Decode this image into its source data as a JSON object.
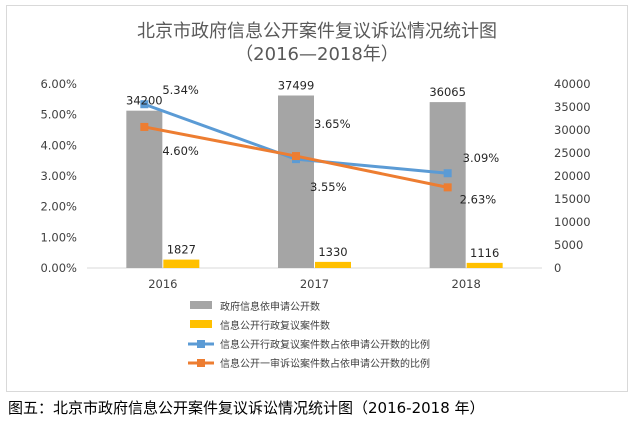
{
  "caption": "图五：北京市政府信息公开案件复议诉讼情况统计图（2016-2018 年）",
  "chart_data": {
    "type": "bar",
    "title": "北京市政府信息公开案件复议诉讼情况统计图",
    "subtitle": "（2016—2018年）",
    "categories": [
      "2016",
      "2017",
      "2018"
    ],
    "left_axis": {
      "min": 0,
      "max": 0.06,
      "ticks": [
        "0.00%",
        "1.00%",
        "2.00%",
        "3.00%",
        "4.00%",
        "5.00%",
        "6.00%"
      ]
    },
    "right_axis": {
      "min": 0,
      "max": 40000,
      "ticks": [
        "0",
        "5000",
        "10000",
        "15000",
        "20000",
        "25000",
        "30000",
        "35000",
        "40000"
      ]
    },
    "grid": false,
    "legend_position": "bottom",
    "series": [
      {
        "name": "政府信息依申请公开数",
        "kind": "bar",
        "axis": "right",
        "color": "#a5a5a5",
        "values": [
          34200,
          37499,
          36065
        ],
        "labels": [
          "34200",
          "37499",
          "36065"
        ]
      },
      {
        "name": "信息公开行政复议案件数",
        "kind": "bar",
        "axis": "right",
        "color": "#ffc000",
        "values": [
          1827,
          1330,
          1116
        ],
        "labels": [
          "1827",
          "1330",
          "1116"
        ]
      },
      {
        "name": "信息公开行政复议案件数占依申请公开数的比例",
        "kind": "line",
        "axis": "left",
        "color": "#5b9bd5",
        "values": [
          0.0534,
          0.0355,
          0.0309
        ],
        "labels": [
          "5.34%",
          "3.55%",
          "3.09%"
        ]
      },
      {
        "name": "信息公开一审诉讼案件数占依申请公开数的比例",
        "kind": "line",
        "axis": "left",
        "color": "#ed7d31",
        "values": [
          0.046,
          0.0365,
          0.0263
        ],
        "labels": [
          "4.60%",
          "3.65%",
          "2.63%"
        ]
      }
    ]
  }
}
